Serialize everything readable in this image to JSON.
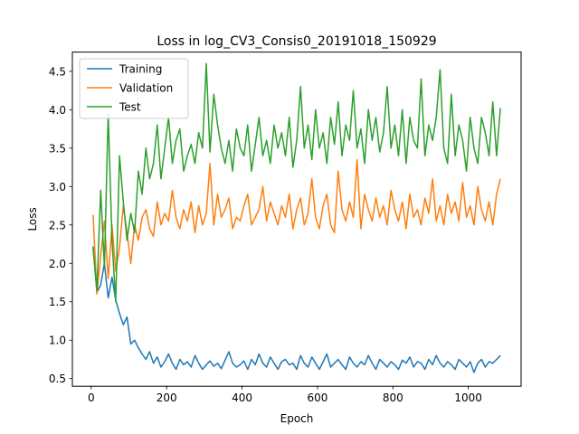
{
  "chart_data": {
    "type": "line",
    "title": "Loss in log_CV3_Consis0_20191018_150929",
    "xlabel": "Epoch",
    "ylabel": "Loss",
    "xlim": [
      -50,
      1140
    ],
    "ylim": [
      0.4,
      4.75
    ],
    "xticks": [
      0,
      200,
      400,
      600,
      800,
      1000
    ],
    "yticks": [
      0.5,
      1.0,
      1.5,
      2.0,
      2.5,
      3.0,
      3.5,
      4.0,
      4.5
    ],
    "ytick_labels": [
      "0.5",
      "1.0",
      "1.5",
      "2.0",
      "2.5",
      "3.0",
      "3.5",
      "4.0",
      "4.5"
    ],
    "grid": false,
    "legend_position": "top-left",
    "series": [
      {
        "name": "Training",
        "color": "#1f77b4",
        "x": [
          5,
          15,
          25,
          35,
          45,
          55,
          65,
          75,
          85,
          95,
          105,
          115,
          125,
          135,
          145,
          155,
          165,
          175,
          185,
          195,
          205,
          215,
          225,
          235,
          245,
          255,
          265,
          275,
          285,
          295,
          305,
          315,
          325,
          335,
          345,
          355,
          365,
          375,
          385,
          395,
          405,
          415,
          425,
          435,
          445,
          455,
          465,
          475,
          485,
          495,
          505,
          515,
          525,
          535,
          545,
          555,
          565,
          575,
          585,
          595,
          605,
          615,
          625,
          635,
          645,
          655,
          665,
          675,
          685,
          695,
          705,
          715,
          725,
          735,
          745,
          755,
          765,
          775,
          785,
          795,
          805,
          815,
          825,
          835,
          845,
          855,
          865,
          875,
          885,
          895,
          905,
          915,
          925,
          935,
          945,
          955,
          965,
          975,
          985,
          995,
          1005,
          1015,
          1025,
          1035,
          1045,
          1055,
          1065,
          1075,
          1085
        ],
        "y": [
          2.22,
          1.62,
          1.72,
          2.0,
          1.55,
          1.82,
          1.52,
          1.35,
          1.2,
          1.3,
          0.95,
          1.0,
          0.9,
          0.82,
          0.75,
          0.85,
          0.7,
          0.78,
          0.65,
          0.72,
          0.82,
          0.7,
          0.62,
          0.75,
          0.68,
          0.72,
          0.65,
          0.8,
          0.7,
          0.62,
          0.68,
          0.73,
          0.66,
          0.7,
          0.63,
          0.74,
          0.85,
          0.7,
          0.65,
          0.68,
          0.73,
          0.62,
          0.75,
          0.68,
          0.82,
          0.7,
          0.65,
          0.78,
          0.7,
          0.62,
          0.72,
          0.75,
          0.68,
          0.7,
          0.62,
          0.8,
          0.7,
          0.65,
          0.78,
          0.7,
          0.62,
          0.72,
          0.82,
          0.65,
          0.7,
          0.75,
          0.68,
          0.62,
          0.78,
          0.7,
          0.65,
          0.72,
          0.68,
          0.8,
          0.7,
          0.62,
          0.75,
          0.7,
          0.65,
          0.72,
          0.68,
          0.62,
          0.74,
          0.7,
          0.78,
          0.65,
          0.72,
          0.7,
          0.62,
          0.75,
          0.68,
          0.8,
          0.7,
          0.65,
          0.72,
          0.68,
          0.62,
          0.75,
          0.7,
          0.65,
          0.72,
          0.58,
          0.7,
          0.75,
          0.65,
          0.72,
          0.7,
          0.75,
          0.8
        ]
      },
      {
        "name": "Validation",
        "color": "#ff7f0e",
        "x": [
          5,
          15,
          25,
          35,
          45,
          55,
          65,
          75,
          85,
          95,
          105,
          115,
          125,
          135,
          145,
          155,
          165,
          175,
          185,
          195,
          205,
          215,
          225,
          235,
          245,
          255,
          265,
          275,
          285,
          295,
          305,
          315,
          325,
          335,
          345,
          355,
          365,
          375,
          385,
          395,
          405,
          415,
          425,
          435,
          445,
          455,
          465,
          475,
          485,
          495,
          505,
          515,
          525,
          535,
          545,
          555,
          565,
          575,
          585,
          595,
          605,
          615,
          625,
          635,
          645,
          655,
          665,
          675,
          685,
          695,
          705,
          715,
          725,
          735,
          745,
          755,
          765,
          775,
          785,
          795,
          805,
          815,
          825,
          835,
          845,
          855,
          865,
          875,
          885,
          895,
          905,
          915,
          925,
          935,
          945,
          955,
          965,
          975,
          985,
          995,
          1005,
          1015,
          1025,
          1035,
          1045,
          1055,
          1065,
          1075,
          1085
        ],
        "y": [
          2.63,
          1.6,
          2.1,
          2.55,
          1.8,
          2.5,
          1.9,
          2.2,
          2.75,
          2.4,
          2.0,
          2.5,
          2.3,
          2.6,
          2.7,
          2.45,
          2.35,
          2.8,
          2.5,
          2.65,
          2.55,
          2.95,
          2.6,
          2.45,
          2.7,
          2.55,
          2.8,
          2.4,
          2.75,
          2.5,
          2.65,
          3.3,
          2.5,
          2.9,
          2.6,
          2.7,
          2.85,
          2.45,
          2.6,
          2.55,
          2.75,
          2.9,
          2.5,
          2.6,
          2.7,
          3.0,
          2.55,
          2.8,
          2.65,
          2.5,
          2.75,
          2.6,
          2.9,
          2.45,
          2.7,
          2.85,
          2.5,
          2.65,
          3.1,
          2.6,
          2.45,
          2.75,
          2.9,
          2.5,
          2.4,
          3.2,
          2.7,
          2.55,
          2.8,
          2.6,
          3.35,
          2.45,
          2.9,
          2.7,
          2.55,
          2.85,
          2.6,
          2.75,
          2.5,
          2.95,
          2.7,
          2.55,
          2.8,
          2.45,
          2.9,
          2.6,
          2.7,
          2.5,
          2.85,
          2.65,
          3.1,
          2.55,
          2.75,
          2.5,
          2.9,
          2.65,
          2.8,
          2.55,
          3.05,
          2.6,
          2.75,
          2.5,
          3.0,
          2.7,
          2.55,
          2.8,
          2.5,
          2.9,
          3.1
        ]
      },
      {
        "name": "Test",
        "color": "#2ca02c",
        "x": [
          5,
          15,
          25,
          35,
          45,
          55,
          65,
          75,
          85,
          95,
          105,
          115,
          125,
          135,
          145,
          155,
          165,
          175,
          185,
          195,
          205,
          215,
          225,
          235,
          245,
          255,
          265,
          275,
          285,
          295,
          305,
          315,
          325,
          335,
          345,
          355,
          365,
          375,
          385,
          395,
          405,
          415,
          425,
          435,
          445,
          455,
          465,
          475,
          485,
          495,
          505,
          515,
          525,
          535,
          545,
          555,
          565,
          575,
          585,
          595,
          605,
          615,
          625,
          635,
          645,
          655,
          665,
          675,
          685,
          695,
          705,
          715,
          725,
          735,
          745,
          755,
          765,
          775,
          785,
          795,
          805,
          815,
          825,
          835,
          845,
          855,
          865,
          875,
          885,
          895,
          905,
          915,
          925,
          935,
          945,
          955,
          965,
          975,
          985,
          995,
          1005,
          1015,
          1025,
          1035,
          1045,
          1055,
          1065,
          1075,
          1085
        ],
        "y": [
          2.2,
          1.65,
          2.95,
          1.95,
          3.95,
          2.3,
          1.5,
          3.4,
          2.8,
          2.3,
          2.65,
          2.4,
          3.2,
          2.9,
          3.5,
          3.1,
          3.3,
          3.8,
          3.1,
          3.5,
          3.9,
          3.3,
          3.6,
          3.75,
          3.2,
          3.4,
          3.55,
          3.3,
          3.7,
          3.5,
          4.6,
          3.45,
          4.2,
          3.8,
          3.5,
          3.3,
          3.6,
          3.2,
          3.75,
          3.5,
          3.4,
          3.8,
          3.2,
          3.55,
          3.9,
          3.4,
          3.6,
          3.3,
          3.8,
          3.5,
          3.7,
          3.4,
          3.9,
          3.25,
          3.6,
          4.3,
          3.5,
          3.8,
          3.35,
          4.0,
          3.5,
          3.7,
          3.3,
          3.9,
          3.55,
          4.1,
          3.4,
          3.8,
          3.6,
          4.25,
          3.5,
          3.75,
          3.3,
          4.0,
          3.6,
          3.9,
          3.45,
          3.7,
          4.3,
          3.5,
          3.8,
          3.4,
          4.0,
          3.3,
          3.9,
          3.6,
          3.5,
          4.4,
          3.4,
          3.8,
          3.6,
          3.9,
          4.52,
          3.5,
          3.3,
          4.2,
          3.4,
          3.8,
          3.6,
          3.2,
          3.9,
          3.5,
          3.3,
          3.9,
          3.7,
          3.4,
          4.1,
          3.4,
          4.02
        ]
      }
    ]
  }
}
